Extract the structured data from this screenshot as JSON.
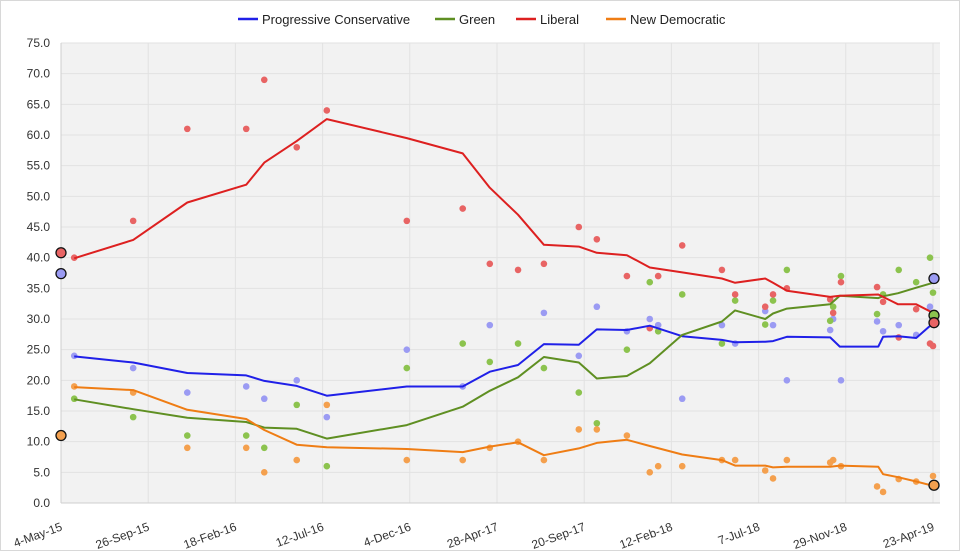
{
  "chart_data": {
    "type": "line",
    "title": "",
    "xlabel": "",
    "ylabel": "",
    "ylim": [
      0,
      75
    ],
    "xlim": [
      "2015-05-04",
      "2019-04-23"
    ],
    "grid": true,
    "legend_placement": "top-center",
    "y_ticks": [
      "0.0",
      "5.0",
      "10.0",
      "15.0",
      "20.0",
      "25.0",
      "30.0",
      "35.0",
      "40.0",
      "45.0",
      "50.0",
      "55.0",
      "60.0",
      "65.0",
      "70.0",
      "75.0"
    ],
    "x_tick_dates": [
      "2015-05-04",
      "2015-09-26",
      "2016-02-18",
      "2016-07-12",
      "2016-12-04",
      "2017-04-28",
      "2017-09-20",
      "2018-02-12",
      "2018-07-07",
      "2018-11-29",
      "2019-04-23"
    ],
    "x_tick_labels": [
      "4-May-15",
      "26-Sep-15",
      "18-Feb-16",
      "12-Jul-16",
      "4-Dec-16",
      "28-Apr-17",
      "20-Sep-17",
      "12-Feb-18",
      "7-Jul-18",
      "29-Nov-18",
      "23-Apr-19"
    ],
    "x": [
      "2015-05-26",
      "2015-09-01",
      "2015-11-30",
      "2016-03-07",
      "2016-04-06",
      "2016-05-30",
      "2016-07-19",
      "2016-11-29",
      "2017-03-02",
      "2017-04-16",
      "2017-06-02",
      "2017-07-15",
      "2017-09-11",
      "2017-10-11",
      "2017-11-30",
      "2018-01-07",
      "2018-03-02",
      "2018-05-07",
      "2018-05-29",
      "2018-07-18",
      "2018-07-31",
      "2018-08-23",
      "2018-11-03",
      "2018-11-19",
      "2019-01-22",
      "2019-01-30",
      "2019-02-24",
      "2019-03-26",
      "2019-04-23"
    ],
    "series": [
      {
        "name": "Progressive Conservative",
        "color": "#2020e8",
        "point_color": "#9b9bf3",
        "values": [
          23.9,
          22.9,
          21.2,
          20.8,
          19.9,
          19.1,
          17.5,
          19.0,
          19.0,
          21.4,
          22.5,
          25.9,
          25.8,
          28.3,
          28.2,
          28.9,
          27.2,
          26.6,
          26.2,
          26.3,
          26.4,
          27.1,
          27.0,
          25.5,
          25.5,
          27.1,
          27.2,
          26.9,
          29.3
        ],
        "start_marker": 37.4,
        "end_marker": 36.6,
        "polls": [
          [
            "2015-05-26",
            24
          ],
          [
            "2015-09-01",
            22
          ],
          [
            "2015-11-30",
            18
          ],
          [
            "2016-03-07",
            19
          ],
          [
            "2016-04-06",
            17
          ],
          [
            "2016-05-30",
            20
          ],
          [
            "2016-07-19",
            14
          ],
          [
            "2016-11-29",
            25
          ],
          [
            "2017-03-02",
            19
          ],
          [
            "2017-04-16",
            29
          ],
          [
            "2017-07-15",
            31
          ],
          [
            "2017-09-11",
            24
          ],
          [
            "2017-10-11",
            32
          ],
          [
            "2017-11-30",
            28
          ],
          [
            "2018-01-07",
            30
          ],
          [
            "2018-01-21",
            29
          ],
          [
            "2018-03-02",
            17
          ],
          [
            "2018-05-07",
            29
          ],
          [
            "2018-05-29",
            26
          ],
          [
            "2018-07-18",
            31.3
          ],
          [
            "2018-07-31",
            29
          ],
          [
            "2018-08-23",
            20
          ],
          [
            "2018-11-03",
            28.2
          ],
          [
            "2018-11-08",
            30
          ],
          [
            "2018-11-21",
            20
          ],
          [
            "2019-01-20",
            29.6
          ],
          [
            "2019-01-30",
            28
          ],
          [
            "2019-02-25",
            29
          ],
          [
            "2019-03-26",
            27.4
          ],
          [
            "2019-04-18",
            32
          ]
        ]
      },
      {
        "name": "Green",
        "color": "#5f8f22",
        "point_color": "#8cc34e",
        "values": [
          16.9,
          15.3,
          13.9,
          13.2,
          12.3,
          12.1,
          10.5,
          12.7,
          15.7,
          18.3,
          20.5,
          23.8,
          22.9,
          20.3,
          20.7,
          22.8,
          27.4,
          29.6,
          31.4,
          30.0,
          30.9,
          31.7,
          32.4,
          33.8,
          33.4,
          33.7,
          34.2,
          35.1,
          35.9
        ],
        "start_marker": null,
        "end_marker": 30.6,
        "polls": [
          [
            "2015-05-26",
            17
          ],
          [
            "2015-09-01",
            14
          ],
          [
            "2015-11-30",
            11
          ],
          [
            "2016-03-07",
            11
          ],
          [
            "2016-04-06",
            9
          ],
          [
            "2016-05-30",
            16
          ],
          [
            "2016-07-19",
            6
          ],
          [
            "2016-11-29",
            22
          ],
          [
            "2017-03-02",
            26
          ],
          [
            "2017-04-16",
            23
          ],
          [
            "2017-06-02",
            26
          ],
          [
            "2017-07-15",
            22
          ],
          [
            "2017-09-11",
            18
          ],
          [
            "2017-10-11",
            13
          ],
          [
            "2017-11-30",
            25
          ],
          [
            "2018-01-07",
            36
          ],
          [
            "2018-01-21",
            28
          ],
          [
            "2018-03-02",
            34
          ],
          [
            "2018-05-07",
            26
          ],
          [
            "2018-05-29",
            33
          ],
          [
            "2018-07-18",
            29.1
          ],
          [
            "2018-07-31",
            33
          ],
          [
            "2018-08-23",
            38
          ],
          [
            "2018-11-03",
            29.7
          ],
          [
            "2018-11-08",
            32
          ],
          [
            "2018-11-21",
            37
          ],
          [
            "2019-01-20",
            30.8
          ],
          [
            "2019-01-30",
            34
          ],
          [
            "2019-02-25",
            38
          ],
          [
            "2019-03-26",
            36
          ],
          [
            "2019-04-18",
            40
          ],
          [
            "2019-04-23",
            34.3
          ]
        ]
      },
      {
        "name": "Liberal",
        "color": "#dd2020",
        "point_color": "#e86464",
        "values": [
          39.9,
          42.9,
          49.0,
          51.9,
          55.5,
          59.0,
          62.6,
          59.5,
          57.0,
          51.4,
          47.0,
          42.1,
          41.8,
          40.8,
          40.4,
          38.4,
          37.6,
          36.6,
          35.9,
          36.6,
          35.9,
          34.6,
          33.6,
          33.8,
          34.0,
          33.6,
          32.4,
          32.4,
          31.0
        ],
        "start_marker": 40.8,
        "end_marker": 29.4,
        "polls": [
          [
            "2015-05-26",
            40
          ],
          [
            "2015-09-01",
            46
          ],
          [
            "2015-11-30",
            61
          ],
          [
            "2016-03-07",
            61
          ],
          [
            "2016-04-06",
            69
          ],
          [
            "2016-05-30",
            58
          ],
          [
            "2016-07-19",
            64
          ],
          [
            "2016-11-29",
            46
          ],
          [
            "2017-03-02",
            48
          ],
          [
            "2017-04-16",
            39
          ],
          [
            "2017-06-02",
            38
          ],
          [
            "2017-07-15",
            39
          ],
          [
            "2017-09-11",
            45
          ],
          [
            "2017-10-11",
            43
          ],
          [
            "2017-11-30",
            37
          ],
          [
            "2018-01-07",
            28.5
          ],
          [
            "2018-01-21",
            37
          ],
          [
            "2018-03-02",
            42
          ],
          [
            "2018-05-07",
            38
          ],
          [
            "2018-05-29",
            34
          ],
          [
            "2018-07-18",
            32
          ],
          [
            "2018-07-31",
            34
          ],
          [
            "2018-08-23",
            35
          ],
          [
            "2018-11-03",
            33.2
          ],
          [
            "2018-11-08",
            31
          ],
          [
            "2018-11-21",
            36
          ],
          [
            "2019-01-20",
            35.2
          ],
          [
            "2019-01-30",
            32.8
          ],
          [
            "2019-02-25",
            27
          ],
          [
            "2019-03-26",
            31.6
          ],
          [
            "2019-04-18",
            26
          ],
          [
            "2019-04-23",
            25.6
          ]
        ]
      },
      {
        "name": "New Democratic",
        "color": "#ef7d14",
        "point_color": "#f4a04e",
        "values": [
          18.9,
          18.4,
          15.2,
          13.7,
          11.9,
          9.5,
          9.1,
          8.8,
          8.3,
          9.2,
          9.9,
          7.8,
          8.9,
          9.8,
          10.3,
          9.3,
          7.9,
          7.0,
          6.1,
          6.1,
          5.8,
          5.9,
          5.9,
          6.1,
          5.9,
          4.7,
          4.2,
          3.5,
          2.8
        ],
        "start_marker": 11.0,
        "end_marker": 2.9,
        "polls": [
          [
            "2015-05-26",
            19
          ],
          [
            "2015-09-01",
            18
          ],
          [
            "2015-11-30",
            9
          ],
          [
            "2016-03-07",
            9
          ],
          [
            "2016-04-06",
            5
          ],
          [
            "2016-05-30",
            7
          ],
          [
            "2016-07-19",
            16
          ],
          [
            "2016-11-29",
            7
          ],
          [
            "2017-03-02",
            7
          ],
          [
            "2017-04-16",
            9
          ],
          [
            "2017-06-02",
            10
          ],
          [
            "2017-07-15",
            7
          ],
          [
            "2017-09-11",
            12
          ],
          [
            "2017-10-11",
            12
          ],
          [
            "2017-11-30",
            11
          ],
          [
            "2018-01-07",
            5
          ],
          [
            "2018-01-21",
            6
          ],
          [
            "2018-03-02",
            6
          ],
          [
            "2018-05-07",
            7
          ],
          [
            "2018-05-29",
            7
          ],
          [
            "2018-07-18",
            5.3
          ],
          [
            "2018-07-31",
            4
          ],
          [
            "2018-08-23",
            7
          ],
          [
            "2018-11-03",
            6.6
          ],
          [
            "2018-11-08",
            7
          ],
          [
            "2018-11-21",
            6
          ],
          [
            "2019-01-20",
            2.7
          ],
          [
            "2019-01-30",
            1.8
          ],
          [
            "2019-02-25",
            3.9
          ],
          [
            "2019-03-26",
            3.5
          ],
          [
            "2019-04-23",
            4.4
          ]
        ]
      }
    ]
  }
}
